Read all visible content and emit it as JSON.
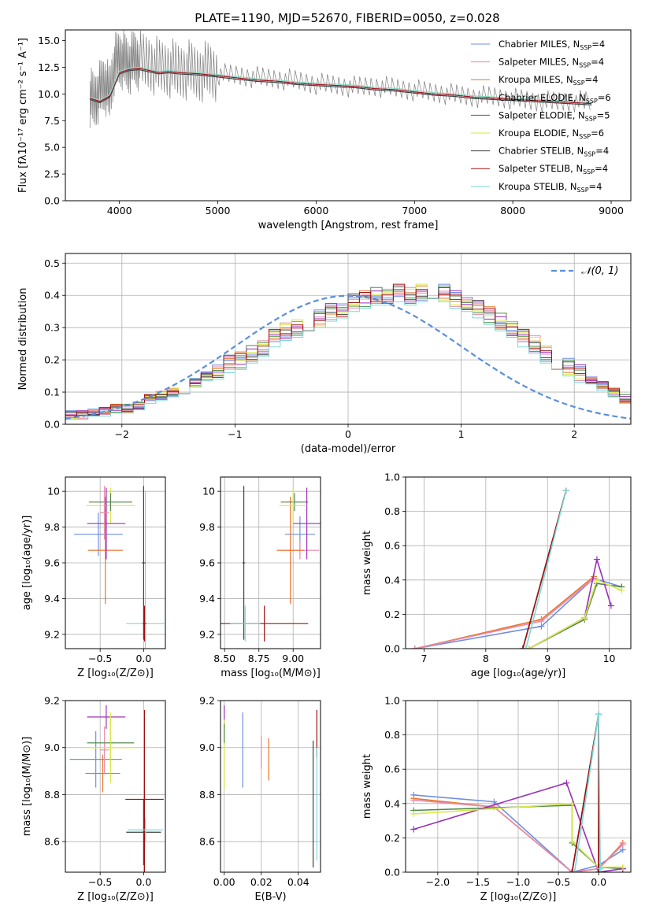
{
  "figure": {
    "title": "PLATE=1190, MJD=52670, FIBERID=0050, z=0.028"
  },
  "series_styles": [
    {
      "name": "Chabrier MILES",
      "nssp": "4",
      "color": "#6f8fe0"
    },
    {
      "name": "Salpeter MILES",
      "nssp": "4",
      "color": "#e889ab"
    },
    {
      "name": "Kroupa MILES",
      "nssp": "4",
      "color": "#e8742a"
    },
    {
      "name": "Chabrier ELODIE",
      "nssp": "6",
      "color": "#4f8a4a"
    },
    {
      "name": "Salpeter ELODIE",
      "nssp": "5",
      "color": "#9a2fb8"
    },
    {
      "name": "Kroupa ELODIE",
      "nssp": "6",
      "color": "#d9e84a"
    },
    {
      "name": "Chabrier STELIB",
      "nssp": "4",
      "color": "#404040"
    },
    {
      "name": "Salpeter STELIB",
      "nssp": "4",
      "color": "#a01010"
    },
    {
      "name": "Kroupa STELIB",
      "nssp": "4",
      "color": "#7fd8d8"
    }
  ],
  "chart_data": [
    {
      "id": "spectrum",
      "type": "line",
      "title": "PLATE=1190, MJD=52670, FIBERID=0050, z=0.028",
      "xlabel": "wavelength [Angstrom, rest frame]",
      "ylabel": "Flux [fλ10⁻¹⁷ erg cm⁻² s⁻¹ A⁻¹]",
      "xlim": [
        3450,
        9200
      ],
      "ylim": [
        0,
        16
      ],
      "xticks": [
        4000,
        5000,
        6000,
        7000,
        8000,
        9000
      ],
      "yticks": [
        0.0,
        2.5,
        5.0,
        7.5,
        10.0,
        12.5,
        15.0
      ],
      "grid": false,
      "legend_placement": "top-right",
      "observed": {
        "color": "#808080",
        "x": [
          3700,
          3750,
          3800,
          3850,
          3900,
          3950,
          4000,
          4050,
          4100,
          4150,
          4200,
          4300,
          4400,
          4500,
          4600,
          4700,
          4800,
          4900,
          5000,
          5200,
          5400,
          5600,
          5800,
          6000,
          6200,
          6400,
          6600,
          6800,
          7000,
          7200,
          7400,
          7600,
          7800,
          8000,
          8200,
          8400,
          8600,
          8800
        ],
        "y": [
          9.8,
          9.5,
          10.5,
          11.2,
          10.0,
          13.0,
          13.5,
          13.2,
          12.8,
          13.5,
          13.2,
          13.1,
          12.6,
          12.6,
          12.3,
          12.4,
          12.1,
          12.3,
          11.9,
          11.8,
          11.6,
          11.5,
          11.3,
          11.0,
          10.9,
          10.7,
          10.8,
          10.6,
          10.4,
          10.2,
          10.0,
          9.8,
          9.8,
          9.6,
          9.4,
          9.3,
          9.4,
          9.3
        ]
      },
      "model": {
        "color": "#7fd8d8",
        "x": [
          3700,
          3800,
          3900,
          4000,
          4100,
          4200,
          4300,
          4400,
          4500,
          4600,
          4800,
          5000,
          5200,
          5400,
          5600,
          5800,
          6000,
          6200,
          6400,
          6600,
          6800,
          7000,
          7200,
          7400,
          7600,
          7800,
          8000,
          8200,
          8400,
          8600,
          8800
        ],
        "y": [
          9.6,
          9.3,
          9.8,
          12.0,
          12.3,
          12.4,
          12.2,
          12.0,
          12.1,
          12.0,
          11.9,
          11.7,
          11.5,
          11.3,
          11.2,
          11.0,
          10.9,
          10.8,
          10.7,
          10.5,
          10.4,
          10.2,
          10.0,
          9.9,
          9.7,
          9.6,
          9.5,
          9.4,
          9.3,
          9.2,
          9.1
        ]
      }
    },
    {
      "id": "residuals",
      "type": "line",
      "xlabel": "(data-model)/error",
      "ylabel": "Normed distribution",
      "xlim": [
        -2.5,
        2.5
      ],
      "ylim": [
        0,
        0.53
      ],
      "xticks": [
        -2,
        -1,
        0,
        1,
        2
      ],
      "yticks": [
        0.0,
        0.1,
        0.2,
        0.3,
        0.4,
        0.5
      ],
      "grid": true,
      "legend": "𝒩(0, 1)",
      "legend_placement": "top-right",
      "bin_width": 0.1,
      "bins_start": -2.5,
      "histogram": [
        0.03,
        0.03,
        0.04,
        0.04,
        0.05,
        0.05,
        0.06,
        0.08,
        0.09,
        0.1,
        0.11,
        0.13,
        0.15,
        0.17,
        0.19,
        0.2,
        0.22,
        0.24,
        0.27,
        0.29,
        0.3,
        0.32,
        0.33,
        0.35,
        0.36,
        0.38,
        0.39,
        0.4,
        0.4,
        0.41,
        0.4,
        0.41,
        0.42,
        0.41,
        0.39,
        0.38,
        0.36,
        0.34,
        0.32,
        0.3,
        0.27,
        0.25,
        0.22,
        0.2,
        0.18,
        0.16,
        0.14,
        0.12,
        0.1,
        0.08,
        0.07,
        0.06,
        0.05,
        0.04,
        0.04,
        0.03,
        0.03,
        0.03,
        0.02
      ]
    },
    {
      "id": "age-vs-z",
      "type": "scatter",
      "xlabel": "Z [log₁₀(Z/Z⊙)]",
      "ylabel": "age  [log₁₀(age/yr)]",
      "xlim": [
        -0.9,
        0.25
      ],
      "ylim": [
        9.12,
        10.08
      ],
      "xticks": [
        -0.5,
        0.0
      ],
      "xtick_labels": [
        "−0.5",
        "0.0"
      ],
      "yticks": [
        9.2,
        9.4,
        9.6,
        9.8,
        10.0
      ],
      "grid": true,
      "points": [
        {
          "series": 0,
          "x": -0.52,
          "y": 9.76,
          "xerr": 0.28,
          "yerr": 0.12
        },
        {
          "series": 2,
          "x": -0.44,
          "y": 9.67,
          "xerr": 0.2,
          "yerr": 0.3
        },
        {
          "series": 5,
          "x": -0.38,
          "y": 9.92,
          "xerr": 0.28,
          "yerr": 0.1
        },
        {
          "series": 3,
          "x": -0.38,
          "y": 9.94,
          "xerr": 0.25,
          "yerr": 0.05
        },
        {
          "series": 4,
          "x": -0.43,
          "y": 9.82,
          "xerr": 0.22,
          "yerr": 0.2
        },
        {
          "series": 1,
          "x": -0.45,
          "y": 9.88,
          "xerr": 0.05,
          "yerr": 0.15
        },
        {
          "series": 8,
          "x": 0.02,
          "y": 9.26,
          "xerr": 0.22,
          "yerr": 0.74
        },
        {
          "series": 6,
          "x": 0.0,
          "y": 9.6,
          "xerr": 0.02,
          "yerr": 0.43
        },
        {
          "series": 7,
          "x": 0.01,
          "y": 9.26,
          "xerr": 0.02,
          "yerr": 0.1
        }
      ]
    },
    {
      "id": "age-vs-mass",
      "type": "scatter",
      "xlabel": "mass [log₁₀(M/M⊙)]",
      "xlim": [
        8.47,
        9.2
      ],
      "ylim": [
        9.12,
        10.08
      ],
      "xticks": [
        8.5,
        8.75,
        9.0
      ],
      "xtick_labels": [
        "8.50",
        "8.75",
        "9.00"
      ],
      "yticks": [
        9.2,
        9.4,
        9.6,
        9.8,
        10.0
      ],
      "grid": true,
      "points": [
        {
          "series": 0,
          "x": 9.05,
          "y": 9.76,
          "xerr": 0.11,
          "yerr": 0.1
        },
        {
          "series": 1,
          "x": 9.05,
          "y": 9.67,
          "xerr": 0.14,
          "yerr": 0.05
        },
        {
          "series": 2,
          "x": 8.98,
          "y": 9.67,
          "xerr": 0.1,
          "yerr": 0.3
        },
        {
          "series": 3,
          "x": 9.01,
          "y": 9.94,
          "xerr": 0.1,
          "yerr": 0.05
        },
        {
          "series": 4,
          "x": 9.1,
          "y": 9.82,
          "xerr": 0.1,
          "yerr": 0.2
        },
        {
          "series": 5,
          "x": 9.0,
          "y": 9.92,
          "xerr": 0.1,
          "yerr": 0.1
        },
        {
          "series": 6,
          "x": 8.64,
          "y": 9.6,
          "xerr": 0.01,
          "yerr": 0.43
        },
        {
          "series": 7,
          "x": 8.79,
          "y": 9.26,
          "xerr": 0.32,
          "yerr": 0.1
        },
        {
          "series": 8,
          "x": 8.65,
          "y": 9.26,
          "xerr": 0.11,
          "yerr": 0.1
        }
      ]
    },
    {
      "id": "weight-vs-age",
      "type": "line",
      "xlabel": "age  [log₁₀(age/yr)]",
      "ylabel": "mass weight",
      "xlim": [
        6.7,
        10.35
      ],
      "ylim": [
        0,
        1.0
      ],
      "xticks": [
        7,
        8,
        9,
        10
      ],
      "yticks": [
        0.0,
        0.2,
        0.4,
        0.6,
        0.8,
        1.0
      ],
      "grid": true,
      "series": [
        {
          "series": 0,
          "x": [
            6.85,
            8.9,
            9.75,
            10.2
          ],
          "y": [
            0.0,
            0.13,
            0.41,
            0.36
          ]
        },
        {
          "series": 2,
          "x": [
            6.85,
            8.9,
            9.75
          ],
          "y": [
            0.0,
            0.17,
            0.42
          ]
        },
        {
          "series": 1,
          "x": [
            6.85,
            8.9,
            9.75
          ],
          "y": [
            0.0,
            0.16,
            0.41
          ]
        },
        {
          "series": 3,
          "x": [
            8.7,
            9.6,
            9.8,
            10.2
          ],
          "y": [
            0.0,
            0.17,
            0.38,
            0.36
          ]
        },
        {
          "series": 4,
          "x": [
            8.7,
            9.6,
            9.8,
            10.03
          ],
          "y": [
            0.0,
            0.18,
            0.52,
            0.25
          ]
        },
        {
          "series": 5,
          "x": [
            8.7,
            9.6,
            9.8,
            10.2
          ],
          "y": [
            0.0,
            0.18,
            0.4,
            0.34
          ]
        },
        {
          "series": 6,
          "x": [
            8.6,
            9.3
          ],
          "y": [
            0.0,
            0.92
          ]
        },
        {
          "series": 7,
          "x": [
            8.6,
            9.3
          ],
          "y": [
            0.0,
            0.92
          ]
        },
        {
          "series": 8,
          "x": [
            8.65,
            9.3
          ],
          "y": [
            0.0,
            0.92
          ]
        }
      ]
    },
    {
      "id": "mass-vs-z",
      "type": "scatter",
      "xlabel": "Z [log₁₀(Z/Z⊙)]",
      "ylabel": "mass [log₁₀(M/M⊙)]",
      "xlim": [
        -0.9,
        0.25
      ],
      "ylim": [
        8.47,
        9.2
      ],
      "xticks": [
        -0.5,
        0.0
      ],
      "xtick_labels": [
        "−0.5",
        "0.0"
      ],
      "yticks": [
        8.6,
        8.8,
        9.0,
        9.2
      ],
      "grid": true,
      "points": [
        {
          "series": 0,
          "x": -0.55,
          "y": 8.95,
          "xerr": 0.3,
          "yerr": 0.12
        },
        {
          "series": 2,
          "x": -0.47,
          "y": 8.89,
          "xerr": 0.2,
          "yerr": 0.08
        },
        {
          "series": 1,
          "x": -0.45,
          "y": 8.99,
          "xerr": 0.05,
          "yerr": 0.1
        },
        {
          "series": 3,
          "x": -0.38,
          "y": 9.02,
          "xerr": 0.27,
          "yerr": 0.1
        },
        {
          "series": 4,
          "x": -0.43,
          "y": 9.13,
          "xerr": 0.22,
          "yerr": 0.05
        },
        {
          "series": 5,
          "x": -0.38,
          "y": 9.0,
          "xerr": 0.28,
          "yerr": 0.15
        },
        {
          "series": 6,
          "x": 0.0,
          "y": 8.64,
          "xerr": 0.2,
          "yerr": 0.14
        },
        {
          "series": 7,
          "x": 0.01,
          "y": 8.78,
          "xerr": 0.22,
          "yerr": 0.38
        },
        {
          "series": 8,
          "x": 0.02,
          "y": 8.65,
          "xerr": 0.2,
          "yerr": 0.05
        }
      ]
    },
    {
      "id": "mass-vs-ebv",
      "type": "scatter",
      "xlabel": "E(B-V)",
      "xlim": [
        -0.002,
        0.052
      ],
      "ylim": [
        8.47,
        9.2
      ],
      "xticks": [
        0.0,
        0.02,
        0.04
      ],
      "xtick_labels": [
        "0.00",
        "0.02",
        "0.04"
      ],
      "yticks": [
        8.6,
        8.8,
        9.0,
        9.2
      ],
      "grid": true,
      "points": [
        {
          "series": 0,
          "x": 0.01,
          "y": 8.99,
          "xerr": 0.0,
          "yerr": 0.16
        },
        {
          "series": 1,
          "x": 0.02,
          "y": 8.98,
          "xerr": 0.0,
          "yerr": 0.07
        },
        {
          "series": 2,
          "x": 0.024,
          "y": 8.95,
          "xerr": 0.0,
          "yerr": 0.09
        },
        {
          "series": 4,
          "x": 0.0,
          "y": 9.13,
          "xerr": 0.0,
          "yerr": 0.05
        },
        {
          "series": 5,
          "x": 0.0,
          "y": 8.97,
          "xerr": 0.0,
          "yerr": 0.15
        },
        {
          "series": 3,
          "x": 0.0,
          "y": 9.06,
          "xerr": 0.0,
          "yerr": 0.04
        },
        {
          "series": 6,
          "x": 0.048,
          "y": 8.76,
          "xerr": 0.0,
          "yerr": 0.27
        },
        {
          "series": 7,
          "x": 0.05,
          "y": 9.06,
          "xerr": 0.0,
          "yerr": 0.1
        },
        {
          "series": 8,
          "x": 0.05,
          "y": 8.76,
          "xerr": 0.0,
          "yerr": 0.24
        }
      ]
    },
    {
      "id": "weight-vs-z",
      "type": "line",
      "xlabel": "Z [log₁₀(Z/Z⊙)]",
      "ylabel": "mass weight",
      "xlim": [
        -2.4,
        0.4
      ],
      "ylim": [
        0,
        1.0
      ],
      "xticks": [
        -2.0,
        -1.5,
        -1.0,
        -0.5,
        0.0
      ],
      "xtick_labels": [
        "−2.0",
        "−1.5",
        "−1.0",
        "−0.5",
        "0.0"
      ],
      "yticks": [
        0.0,
        0.2,
        0.4,
        0.6,
        0.8,
        1.0
      ],
      "grid": true,
      "series": [
        {
          "series": 0,
          "x": [
            -2.3,
            -1.3,
            -0.33,
            0.0,
            0.3
          ],
          "y": [
            0.45,
            0.41,
            0.0,
            0.04,
            0.13
          ]
        },
        {
          "series": 2,
          "x": [
            -2.3,
            -1.3,
            -0.33,
            0.0,
            0.3
          ],
          "y": [
            0.43,
            0.38,
            0.0,
            0.02,
            0.17
          ]
        },
        {
          "series": 1,
          "x": [
            -2.3,
            -1.3,
            -0.33,
            0.0,
            0.3
          ],
          "y": [
            0.42,
            0.38,
            0.0,
            0.02,
            0.16
          ]
        },
        {
          "series": 3,
          "x": [
            -2.3,
            -0.33,
            -0.33,
            0.0,
            0.3
          ],
          "y": [
            0.36,
            0.39,
            0.17,
            0.03,
            0.02
          ]
        },
        {
          "series": 4,
          "x": [
            -2.3,
            -0.4,
            0.0,
            0.3
          ],
          "y": [
            0.25,
            0.52,
            0.0,
            0.02
          ]
        },
        {
          "series": 5,
          "x": [
            -2.3,
            -0.33,
            -0.33,
            0.0,
            0.3
          ],
          "y": [
            0.34,
            0.4,
            0.18,
            0.03,
            0.03
          ]
        },
        {
          "series": 6,
          "x": [
            -0.33,
            0.0,
            0.0
          ],
          "y": [
            0.0,
            0.92,
            0.0
          ]
        },
        {
          "series": 7,
          "x": [
            -0.33,
            0.0,
            0.0
          ],
          "y": [
            0.0,
            0.92,
            0.0
          ]
        },
        {
          "series": 8,
          "x": [
            -0.3,
            0.0,
            0.02
          ],
          "y": [
            0.0,
            0.92,
            0.02
          ]
        }
      ]
    }
  ]
}
